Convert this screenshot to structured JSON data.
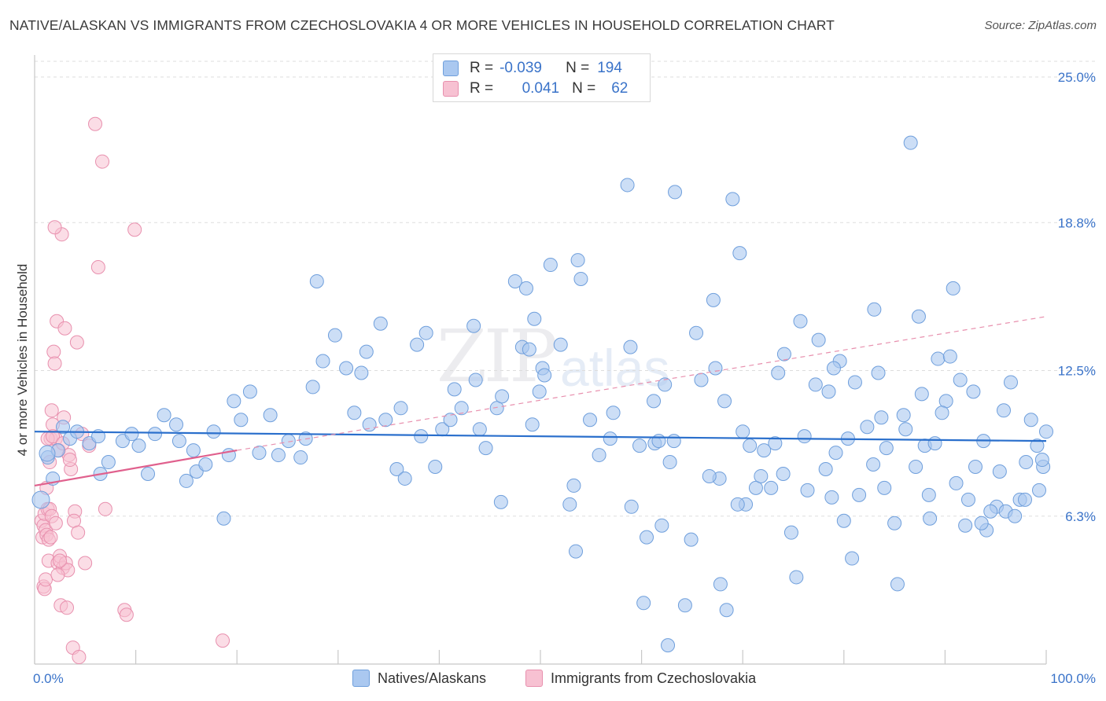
{
  "header": {
    "title": "NATIVE/ALASKAN VS IMMIGRANTS FROM CZECHOSLOVAKIA 4 OR MORE VEHICLES IN HOUSEHOLD CORRELATION CHART",
    "source": "Source: ZipAtlas.com"
  },
  "watermark": {
    "zip": "ZIP",
    "atlas": "atlas"
  },
  "stats": {
    "row1": {
      "r_label": "R =",
      "r_value": "-0.039",
      "n_label": "N =",
      "n_value": "194"
    },
    "row2": {
      "r_label": "R =",
      "r_value": "0.041",
      "n_label": "N =",
      "n_value": "62"
    }
  },
  "legend": {
    "series1": "Natives/Alaskans",
    "series2": "Immigrants from Czechoslovakia"
  },
  "colors": {
    "blue_fill": "#aac8f0",
    "blue_stroke": "#6f9fdc",
    "blue_line": "#2a6fcc",
    "pink_fill": "#f7c1d2",
    "pink_stroke": "#e890ae",
    "pink_line": "#e0608d",
    "grid": "#dddddd",
    "tick_label": "#3a73c9"
  },
  "chart_data": {
    "type": "scatter",
    "title": "NATIVE/ALASKAN VS IMMIGRANTS FROM CZECHOSLOVAKIA 4 OR MORE VEHICLES IN HOUSEHOLD CORRELATION CHART",
    "xlabel": "",
    "ylabel": "4 or more Vehicles in Household",
    "xlim": [
      0,
      100
    ],
    "ylim": [
      0,
      25
    ],
    "x_tick_labels": [
      "0.0%",
      "100.0%"
    ],
    "y_ticks": [
      6.3,
      12.5,
      18.8,
      25.0
    ],
    "y_tick_labels": [
      "6.3%",
      "12.5%",
      "18.8%",
      "25.0%"
    ],
    "grid": true,
    "legend_position": "bottom",
    "series": [
      {
        "name": "Natives/Alaskans",
        "trend": {
          "x": [
            0,
            100
          ],
          "y": [
            9.9,
            9.5
          ]
        },
        "points": [
          [
            1.3,
            8.8
          ],
          [
            1.8,
            7.9
          ],
          [
            2.3,
            9.1
          ],
          [
            2.8,
            10.1
          ],
          [
            3.5,
            9.6
          ],
          [
            4.2,
            9.9
          ],
          [
            5.4,
            9.4
          ],
          [
            6.3,
            9.7
          ],
          [
            6.5,
            8.1
          ],
          [
            7.3,
            8.6
          ],
          [
            8.7,
            9.5
          ],
          [
            9.6,
            9.8
          ],
          [
            10.3,
            9.3
          ],
          [
            11.2,
            8.1
          ],
          [
            11.9,
            9.8
          ],
          [
            12.8,
            10.6
          ],
          [
            14.0,
            10.2
          ],
          [
            14.3,
            9.5
          ],
          [
            15.0,
            7.8
          ],
          [
            15.7,
            9.1
          ],
          [
            16.0,
            8.2
          ],
          [
            16.9,
            8.5
          ],
          [
            17.7,
            9.9
          ],
          [
            18.7,
            6.2
          ],
          [
            19.2,
            8.9
          ],
          [
            19.7,
            11.2
          ],
          [
            20.4,
            10.4
          ],
          [
            21.3,
            11.6
          ],
          [
            22.2,
            9.0
          ],
          [
            23.3,
            10.6
          ],
          [
            24.1,
            8.9
          ],
          [
            25.1,
            9.5
          ],
          [
            26.3,
            8.8
          ],
          [
            26.8,
            9.6
          ],
          [
            27.9,
            16.3
          ],
          [
            28.5,
            12.9
          ],
          [
            29.7,
            14.0
          ],
          [
            30.8,
            12.6
          ],
          [
            31.6,
            10.7
          ],
          [
            32.3,
            12.4
          ],
          [
            32.8,
            13.3
          ],
          [
            33.1,
            10.2
          ],
          [
            34.2,
            14.5
          ],
          [
            34.7,
            10.4
          ],
          [
            35.8,
            8.3
          ],
          [
            36.2,
            10.9
          ],
          [
            37.8,
            13.6
          ],
          [
            38.2,
            9.7
          ],
          [
            38.7,
            14.1
          ],
          [
            39.6,
            8.4
          ],
          [
            40.3,
            10.0
          ],
          [
            41.1,
            10.4
          ],
          [
            41.5,
            11.7
          ],
          [
            42.2,
            10.9
          ],
          [
            43.4,
            14.4
          ],
          [
            43.6,
            12.1
          ],
          [
            44.6,
            9.2
          ],
          [
            45.7,
            10.9
          ],
          [
            46.1,
            6.9
          ],
          [
            46.2,
            11.4
          ],
          [
            47.5,
            16.3
          ],
          [
            48.2,
            13.5
          ],
          [
            48.6,
            16.0
          ],
          [
            49.2,
            10.2
          ],
          [
            49.4,
            14.7
          ],
          [
            49.9,
            11.6
          ],
          [
            50.2,
            12.6
          ],
          [
            50.4,
            12.3
          ],
          [
            51.0,
            17.0
          ],
          [
            52.0,
            13.6
          ],
          [
            52.9,
            6.8
          ],
          [
            53.3,
            7.6
          ],
          [
            53.7,
            17.2
          ],
          [
            54.0,
            16.4
          ],
          [
            55.8,
            8.9
          ],
          [
            56.9,
            9.6
          ],
          [
            58.6,
            20.4
          ],
          [
            59.0,
            6.7
          ],
          [
            60.5,
            5.4
          ],
          [
            61.3,
            9.4
          ],
          [
            61.7,
            9.5
          ],
          [
            62.3,
            11.9
          ],
          [
            63.2,
            9.5
          ],
          [
            63.3,
            20.1
          ],
          [
            64.3,
            2.5
          ],
          [
            64.9,
            5.3
          ],
          [
            65.4,
            14.1
          ],
          [
            67.1,
            15.5
          ],
          [
            67.3,
            12.6
          ],
          [
            67.7,
            7.9
          ],
          [
            68.2,
            11.2
          ],
          [
            69.0,
            19.8
          ],
          [
            69.7,
            17.5
          ],
          [
            70.3,
            6.8
          ],
          [
            70.7,
            9.3
          ],
          [
            71.3,
            7.5
          ],
          [
            71.8,
            8.0
          ],
          [
            73.2,
            9.4
          ],
          [
            73.5,
            12.4
          ],
          [
            74.8,
            5.6
          ],
          [
            75.7,
            14.6
          ],
          [
            76.4,
            7.4
          ],
          [
            77.5,
            13.8
          ],
          [
            78.2,
            8.3
          ],
          [
            78.5,
            11.6
          ],
          [
            79.2,
            9.0
          ],
          [
            80.0,
            6.1
          ],
          [
            80.4,
            9.6
          ],
          [
            81.5,
            7.2
          ],
          [
            82.3,
            10.1
          ],
          [
            83.4,
            12.4
          ],
          [
            84.2,
            9.2
          ],
          [
            85.0,
            6.0
          ],
          [
            85.9,
            10.6
          ],
          [
            86.6,
            22.2
          ],
          [
            87.1,
            8.4
          ],
          [
            88.0,
            9.3
          ],
          [
            88.4,
            7.2
          ],
          [
            89.3,
            13.0
          ],
          [
            90.1,
            11.2
          ],
          [
            90.8,
            16.0
          ],
          [
            91.5,
            12.1
          ],
          [
            92.3,
            7.0
          ],
          [
            93.0,
            8.4
          ],
          [
            94.1,
            5.7
          ],
          [
            95.1,
            6.7
          ],
          [
            96.0,
            6.5
          ],
          [
            97.4,
            7.0
          ],
          [
            98.0,
            8.6
          ],
          [
            99.1,
            9.3
          ],
          [
            99.7,
            8.4
          ],
          [
            100.0,
            9.9
          ],
          [
            27.5,
            11.8
          ],
          [
            36.6,
            7.9
          ],
          [
            44.0,
            10.0
          ],
          [
            57.2,
            10.7
          ],
          [
            59.8,
            9.3
          ],
          [
            62.8,
            8.6
          ],
          [
            65.9,
            12.1
          ],
          [
            72.1,
            9.1
          ],
          [
            74.1,
            13.2
          ],
          [
            76.1,
            9.7
          ],
          [
            79.6,
            12.9
          ],
          [
            81.1,
            12.0
          ],
          [
            82.9,
            8.5
          ],
          [
            86.1,
            10.0
          ],
          [
            87.7,
            11.5
          ],
          [
            89.7,
            10.7
          ],
          [
            91.1,
            7.7
          ],
          [
            92.8,
            11.6
          ],
          [
            93.8,
            9.5
          ],
          [
            95.8,
            10.8
          ],
          [
            96.5,
            12.0
          ],
          [
            98.5,
            10.4
          ],
          [
            83.0,
            15.1
          ],
          [
            84.0,
            7.5
          ],
          [
            53.5,
            4.8
          ],
          [
            62.0,
            5.9
          ],
          [
            67.8,
            3.4
          ],
          [
            69.5,
            6.8
          ],
          [
            75.3,
            3.7
          ],
          [
            77.2,
            11.9
          ],
          [
            80.8,
            4.5
          ],
          [
            85.3,
            3.4
          ],
          [
            88.5,
            6.2
          ],
          [
            93.6,
            6.0
          ],
          [
            94.5,
            6.5
          ],
          [
            96.9,
            6.3
          ],
          [
            99.3,
            7.4
          ],
          [
            60.2,
            2.6
          ],
          [
            62.6,
            0.8
          ],
          [
            68.4,
            2.3
          ],
          [
            74.0,
            8.1
          ],
          [
            79.0,
            12.6
          ],
          [
            87.4,
            14.8
          ],
          [
            90.5,
            13.1
          ],
          [
            92.0,
            5.9
          ],
          [
            97.9,
            7.0
          ],
          [
            99.6,
            8.7
          ],
          [
            58.9,
            13.5
          ],
          [
            61.2,
            11.2
          ],
          [
            66.7,
            8.0
          ],
          [
            72.8,
            7.5
          ],
          [
            78.8,
            7.1
          ],
          [
            83.7,
            10.5
          ],
          [
            89.0,
            9.4
          ],
          [
            95.4,
            8.2
          ],
          [
            70.0,
            9.9
          ],
          [
            54.9,
            10.4
          ],
          [
            48.9,
            13.4
          ]
        ]
      },
      {
        "name": "Immigrants from Czechoslovakia",
        "trend": {
          "x": [
            0,
            20
          ],
          "y": [
            7.6,
            9.1
          ]
        },
        "trend_extended": {
          "x": [
            20,
            100
          ],
          "y": [
            9.1,
            14.8
          ]
        },
        "points": [
          [
            0.3,
            6.1
          ],
          [
            0.4,
            5.4
          ],
          [
            0.5,
            5.9
          ],
          [
            0.6,
            6.4
          ],
          [
            0.7,
            5.7
          ],
          [
            0.8,
            7.5
          ],
          [
            0.9,
            6.6
          ],
          [
            1.0,
            4.4
          ],
          [
            1.1,
            6.6
          ],
          [
            1.2,
            9.6
          ],
          [
            1.3,
            6.3
          ],
          [
            1.4,
            10.2
          ],
          [
            1.5,
            13.3
          ],
          [
            1.6,
            12.8
          ],
          [
            1.7,
            9.6
          ],
          [
            1.8,
            14.6
          ],
          [
            1.9,
            4.3
          ],
          [
            2.0,
            9.1
          ],
          [
            2.1,
            4.6
          ],
          [
            2.2,
            2.5
          ],
          [
            2.3,
            18.3
          ],
          [
            2.4,
            4.1
          ],
          [
            2.5,
            10.5
          ],
          [
            2.6,
            14.3
          ],
          [
            2.7,
            4.3
          ],
          [
            2.8,
            2.4
          ],
          [
            2.9,
            4.0
          ],
          [
            3.0,
            8.9
          ],
          [
            3.2,
            8.3
          ],
          [
            3.4,
            0.7
          ],
          [
            3.6,
            6.5
          ],
          [
            3.8,
            13.7
          ],
          [
            4.0,
            0.3
          ],
          [
            4.3,
            9.8
          ],
          [
            4.6,
            4.3
          ],
          [
            5.0,
            9.3
          ],
          [
            5.6,
            23.0
          ],
          [
            5.9,
            16.9
          ],
          [
            6.3,
            21.4
          ],
          [
            6.6,
            6.6
          ],
          [
            8.5,
            2.3
          ],
          [
            8.7,
            2.1
          ],
          [
            9.5,
            18.5
          ],
          [
            18.2,
            1.0
          ],
          [
            0.5,
            3.3
          ],
          [
            0.6,
            3.2
          ],
          [
            0.7,
            3.6
          ],
          [
            0.8,
            5.5
          ],
          [
            0.9,
            9.6
          ],
          [
            1.0,
            5.3
          ],
          [
            1.1,
            8.6
          ],
          [
            1.2,
            5.4
          ],
          [
            1.3,
            10.8
          ],
          [
            1.4,
            9.7
          ],
          [
            1.6,
            18.6
          ],
          [
            1.7,
            6.0
          ],
          [
            1.9,
            3.8
          ],
          [
            2.1,
            4.4
          ],
          [
            2.4,
            9.4
          ],
          [
            3.1,
            8.7
          ],
          [
            3.5,
            6.1
          ],
          [
            3.9,
            5.6
          ]
        ]
      }
    ]
  }
}
